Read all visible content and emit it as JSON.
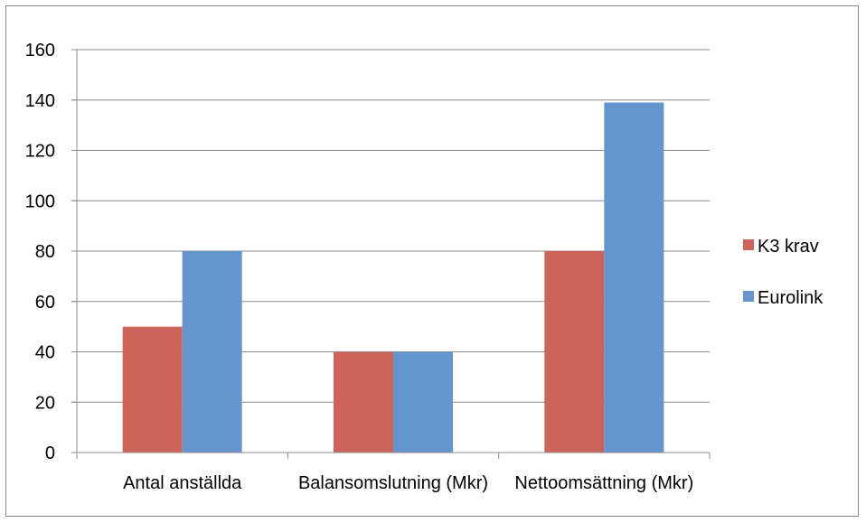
{
  "chart_data": {
    "type": "bar",
    "categories": [
      "Antal anställda",
      "Balansomslutning (Mkr)",
      "Nettoomsättning (Mkr)"
    ],
    "series": [
      {
        "name": "K3 krav",
        "values": [
          50,
          40,
          80
        ],
        "color": "#cd645c"
      },
      {
        "name": "Eurolink",
        "values": [
          80,
          40,
          139
        ],
        "color": "#6496cd"
      }
    ],
    "yticks": [
      "0",
      "20",
      "40",
      "60",
      "80",
      "100",
      "120",
      "140",
      "160"
    ],
    "ylim": [
      0,
      160
    ],
    "grid": true,
    "legend_position": "right"
  }
}
